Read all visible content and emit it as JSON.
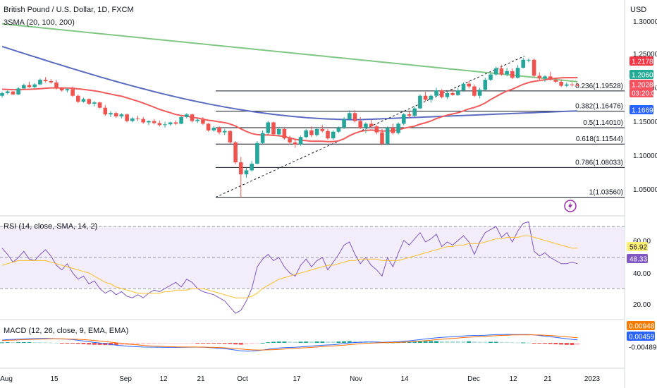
{
  "chart_data": {
    "type": "candlestick",
    "title": "British Pound / U.S. Dollar, 1D, FXCM",
    "currency": "USD",
    "indicator_label": "3SMA (20, 100, 200)",
    "x_ticks": [
      "Aug",
      "15",
      "Sep",
      "12",
      "21",
      "Oct",
      "17",
      "Nov",
      "14",
      "Dec",
      "12",
      "21",
      "2023"
    ],
    "price_ticks": [
      "1.30000",
      "1.25000",
      "1.20000",
      "1.15000",
      "1.10000",
      "1.05000"
    ],
    "price_tags": [
      {
        "label": "1.21782",
        "color": "#f23645"
      },
      {
        "label": "1.20607",
        "color": "#22ab94"
      },
      {
        "label": "1.20289",
        "color": "#f7525f"
      },
      {
        "label": "03:20:00",
        "color": "#f7525f"
      },
      {
        "label": "1.16690",
        "color": "#2962ff"
      }
    ],
    "fib_levels": [
      {
        "label": "0.236(1.19528)",
        "value": 1.19528
      },
      {
        "label": "0.382(1.16476)",
        "value": 1.16476
      },
      {
        "label": "0.5(1.14010)",
        "value": 1.1401
      },
      {
        "label": "0.618(1.11544)",
        "value": 1.11544
      },
      {
        "label": "0.786(1.08033)",
        "value": 1.08033
      },
      {
        "label": "1(1.03560)",
        "value": 1.0356
      }
    ],
    "candles": [
      [
        1.188,
        1.194,
        1.185,
        1.192
      ],
      [
        1.192,
        1.196,
        1.19,
        1.1945
      ],
      [
        1.1945,
        1.195,
        1.189,
        1.19
      ],
      [
        1.19,
        1.201,
        1.189,
        1.199
      ],
      [
        1.199,
        1.206,
        1.198,
        1.204
      ],
      [
        1.204,
        1.209,
        1.2,
        1.201
      ],
      [
        1.201,
        1.207,
        1.199,
        1.205
      ],
      [
        1.205,
        1.214,
        1.204,
        1.212
      ],
      [
        1.212,
        1.216,
        1.208,
        1.21
      ],
      [
        1.21,
        1.213,
        1.206,
        1.208
      ],
      [
        1.208,
        1.212,
        1.197,
        1.199
      ],
      [
        1.199,
        1.201,
        1.194,
        1.196
      ],
      [
        1.196,
        1.2,
        1.193,
        1.198
      ],
      [
        1.198,
        1.202,
        1.186,
        1.188
      ],
      [
        1.188,
        1.19,
        1.177,
        1.179
      ],
      [
        1.179,
        1.185,
        1.178,
        1.183
      ],
      [
        1.183,
        1.184,
        1.174,
        1.176
      ],
      [
        1.176,
        1.18,
        1.172,
        1.178
      ],
      [
        1.178,
        1.179,
        1.169,
        1.17
      ],
      [
        1.17,
        1.174,
        1.158,
        1.16
      ],
      [
        1.16,
        1.165,
        1.156,
        1.162
      ],
      [
        1.162,
        1.164,
        1.155,
        1.157
      ],
      [
        1.157,
        1.162,
        1.154,
        1.16
      ],
      [
        1.16,
        1.161,
        1.148,
        1.15
      ],
      [
        1.15,
        1.156,
        1.148,
        1.154
      ],
      [
        1.154,
        1.158,
        1.15,
        1.153
      ],
      [
        1.153,
        1.156,
        1.146,
        1.148
      ],
      [
        1.148,
        1.151,
        1.144,
        1.15
      ],
      [
        1.15,
        1.153,
        1.145,
        1.147
      ],
      [
        1.147,
        1.151,
        1.142,
        1.144
      ],
      [
        1.144,
        1.149,
        1.14,
        1.145
      ],
      [
        1.145,
        1.149,
        1.143,
        1.148
      ],
      [
        1.148,
        1.151,
        1.144,
        1.146
      ],
      [
        1.146,
        1.157,
        1.145,
        1.156
      ],
      [
        1.156,
        1.162,
        1.154,
        1.16
      ],
      [
        1.16,
        1.161,
        1.148,
        1.15
      ],
      [
        1.15,
        1.154,
        1.147,
        1.152
      ],
      [
        1.152,
        1.156,
        1.144,
        1.146
      ],
      [
        1.146,
        1.147,
        1.134,
        1.136
      ],
      [
        1.136,
        1.142,
        1.134,
        1.14
      ],
      [
        1.14,
        1.142,
        1.13,
        1.133
      ],
      [
        1.133,
        1.138,
        1.129,
        1.135
      ],
      [
        1.135,
        1.136,
        1.116,
        1.118
      ],
      [
        1.118,
        1.12,
        1.085,
        1.088
      ],
      [
        1.088,
        1.096,
        1.0356,
        1.07
      ],
      [
        1.07,
        1.08,
        1.065,
        1.076
      ],
      [
        1.076,
        1.09,
        1.074,
        1.086
      ],
      [
        1.086,
        1.12,
        1.085,
        1.117
      ],
      [
        1.117,
        1.136,
        1.115,
        1.132
      ],
      [
        1.132,
        1.15,
        1.13,
        1.148
      ],
      [
        1.148,
        1.149,
        1.128,
        1.13
      ],
      [
        1.13,
        1.14,
        1.128,
        1.138
      ],
      [
        1.138,
        1.14,
        1.122,
        1.124
      ],
      [
        1.124,
        1.128,
        1.115,
        1.118
      ],
      [
        1.118,
        1.122,
        1.11,
        1.115
      ],
      [
        1.115,
        1.128,
        1.113,
        1.126
      ],
      [
        1.126,
        1.138,
        1.124,
        1.136
      ],
      [
        1.136,
        1.142,
        1.126,
        1.129
      ],
      [
        1.129,
        1.14,
        1.127,
        1.138
      ],
      [
        1.138,
        1.144,
        1.133,
        1.135
      ],
      [
        1.135,
        1.138,
        1.122,
        1.124
      ],
      [
        1.124,
        1.136,
        1.122,
        1.134
      ],
      [
        1.134,
        1.142,
        1.132,
        1.14
      ],
      [
        1.14,
        1.156,
        1.138,
        1.153
      ],
      [
        1.153,
        1.166,
        1.151,
        1.162
      ],
      [
        1.162,
        1.166,
        1.148,
        1.15
      ],
      [
        1.15,
        1.156,
        1.138,
        1.14
      ],
      [
        1.14,
        1.148,
        1.132,
        1.146
      ],
      [
        1.146,
        1.152,
        1.14,
        1.142
      ],
      [
        1.142,
        1.144,
        1.13,
        1.133
      ],
      [
        1.133,
        1.138,
        1.114,
        1.116
      ],
      [
        1.116,
        1.142,
        1.114,
        1.14
      ],
      [
        1.14,
        1.146,
        1.13,
        1.132
      ],
      [
        1.132,
        1.148,
        1.13,
        1.146
      ],
      [
        1.146,
        1.162,
        1.144,
        1.16
      ],
      [
        1.16,
        1.165,
        1.154,
        1.158
      ],
      [
        1.158,
        1.172,
        1.156,
        1.169
      ],
      [
        1.169,
        1.19,
        1.168,
        1.188
      ],
      [
        1.188,
        1.194,
        1.18,
        1.182
      ],
      [
        1.182,
        1.19,
        1.178,
        1.188
      ],
      [
        1.188,
        1.2,
        1.186,
        1.196
      ],
      [
        1.196,
        1.198,
        1.184,
        1.186
      ],
      [
        1.186,
        1.195,
        1.183,
        1.192
      ],
      [
        1.192,
        1.198,
        1.188,
        1.189
      ],
      [
        1.189,
        1.2,
        1.188,
        1.196
      ],
      [
        1.196,
        1.208,
        1.194,
        1.206
      ],
      [
        1.206,
        1.21,
        1.199,
        1.202
      ],
      [
        1.202,
        1.205,
        1.186,
        1.188
      ],
      [
        1.188,
        1.2,
        1.184,
        1.197
      ],
      [
        1.197,
        1.215,
        1.196,
        1.212
      ],
      [
        1.212,
        1.223,
        1.21,
        1.22
      ],
      [
        1.22,
        1.232,
        1.218,
        1.229
      ],
      [
        1.229,
        1.234,
        1.218,
        1.22
      ],
      [
        1.22,
        1.23,
        1.217,
        1.225
      ],
      [
        1.225,
        1.229,
        1.213,
        1.215
      ],
      [
        1.215,
        1.234,
        1.214,
        1.23
      ],
      [
        1.23,
        1.245,
        1.229,
        1.242
      ],
      [
        1.242,
        1.244,
        1.238,
        1.242
      ],
      [
        1.242,
        1.244,
        1.216,
        1.218
      ],
      [
        1.218,
        1.223,
        1.212,
        1.214
      ],
      [
        1.214,
        1.219,
        1.209,
        1.217
      ],
      [
        1.217,
        1.224,
        1.211,
        1.212
      ],
      [
        1.212,
        1.215,
        1.207,
        1.209
      ],
      [
        1.209,
        1.212,
        1.201,
        1.203
      ],
      [
        1.203,
        1.208,
        1.201,
        1.205
      ],
      [
        1.205,
        1.208,
        1.202,
        1.204
      ],
      [
        1.204,
        1.207,
        1.202,
        1.203
      ]
    ],
    "ma_series": [
      {
        "name": "200",
        "color": "#81c784"
      },
      {
        "name": "100",
        "color": "#5b6bbf"
      },
      {
        "name": "20",
        "color": "#f05a5a"
      }
    ],
    "rsi": {
      "label": "RSI (14, close, SMA, 14, 2)",
      "ticks": [
        "60.00",
        "40.00",
        "20.00"
      ],
      "value_tags": [
        {
          "label": "56.92",
          "color": "#fff176",
          "text": "#131722"
        },
        {
          "label": "48.33",
          "color": "#7e57c2",
          "text": "#ffffff"
        }
      ],
      "band": [
        30,
        70
      ],
      "values": [
        56,
        52,
        47,
        50,
        54,
        49,
        48,
        52,
        55,
        51,
        45,
        42,
        46,
        40,
        36,
        38,
        33,
        35,
        30,
        27,
        29,
        26,
        28,
        25,
        24,
        26,
        24,
        27,
        29,
        28,
        30,
        32,
        34,
        31,
        36,
        34,
        30,
        28,
        27,
        26,
        24,
        22,
        18,
        14,
        16,
        22,
        30,
        44,
        49,
        52,
        48,
        50,
        44,
        40,
        38,
        45,
        49,
        44,
        48,
        50,
        42,
        47,
        52,
        58,
        60,
        52,
        46,
        50,
        45,
        42,
        38,
        50,
        44,
        53,
        61,
        58,
        62,
        66,
        60,
        62,
        65,
        57,
        60,
        58,
        61,
        64,
        60,
        52,
        60,
        66,
        68,
        70,
        63,
        66,
        60,
        67,
        72,
        73,
        54,
        51,
        53,
        50,
        48,
        46,
        46,
        47,
        46
      ],
      "ma_values": [
        45,
        46,
        47,
        48,
        48,
        48,
        48,
        48,
        48,
        47,
        46,
        45,
        44,
        43,
        42,
        41,
        40,
        38,
        36,
        34,
        33,
        31,
        30,
        29,
        28,
        27,
        27,
        27,
        27,
        27,
        28,
        28,
        29,
        29,
        29,
        30,
        30,
        30,
        29,
        28,
        27,
        26,
        25,
        24,
        24,
        24,
        25,
        27,
        30,
        32,
        34,
        36,
        37,
        38,
        39,
        40,
        41,
        42,
        43,
        44,
        45,
        45,
        46,
        47,
        48,
        48,
        49,
        49,
        49,
        49,
        48,
        48,
        48,
        48,
        49,
        50,
        51,
        52,
        53,
        54,
        55,
        56,
        57,
        57,
        58,
        58,
        59,
        59,
        59,
        60,
        61,
        62,
        62,
        63,
        63,
        63,
        64,
        64,
        63,
        62,
        61,
        60,
        59,
        58,
        57,
        56,
        56
      ]
    },
    "macd": {
      "label": "MACD (12, 26, close, 9, EMA, EMA)",
      "value_tags": [
        {
          "label": "0.00948",
          "color": "#f57c00",
          "text": "#ffffff"
        },
        {
          "label": "0.00459",
          "color": "#2962ff",
          "text": "#ffffff"
        },
        {
          "label": "-0.00489",
          "color": "#ffffff",
          "text": "#131722"
        }
      ],
      "macd": [
        0.006,
        0.007,
        0.0075,
        0.008,
        0.0085,
        0.009,
        0.0092,
        0.0095,
        0.0096,
        0.0094,
        0.009,
        0.0085,
        0.008,
        0.007,
        0.0055,
        0.004,
        0.0025,
        0.001,
        -0.0005,
        -0.002,
        -0.0035,
        -0.005,
        -0.0062,
        -0.0072,
        -0.008,
        -0.0085,
        -0.009,
        -0.0092,
        -0.0094,
        -0.0096,
        -0.0098,
        -0.0099,
        -0.01,
        -0.0098,
        -0.0095,
        -0.0093,
        -0.0094,
        -0.0097,
        -0.0102,
        -0.011,
        -0.0118,
        -0.0128,
        -0.014,
        -0.0158,
        -0.0175,
        -0.018,
        -0.0178,
        -0.017,
        -0.0155,
        -0.014,
        -0.0125,
        -0.0112,
        -0.0105,
        -0.01,
        -0.0096,
        -0.0088,
        -0.0078,
        -0.007,
        -0.006,
        -0.0052,
        -0.0046,
        -0.004,
        -0.003,
        -0.0015,
        0.0,
        0.0008,
        0.0012,
        0.0018,
        0.002,
        0.0018,
        0.0012,
        0.0016,
        0.0018,
        0.0024,
        0.0035,
        0.0045,
        0.0058,
        0.007,
        0.0085,
        0.0098,
        0.011,
        0.0118,
        0.0126,
        0.0134,
        0.0142,
        0.015,
        0.0158,
        0.016,
        0.016,
        0.0165,
        0.0172,
        0.0178,
        0.0182,
        0.0184,
        0.0182,
        0.018,
        0.0182,
        0.018,
        0.0172,
        0.016,
        0.0148,
        0.0135,
        0.012,
        0.0105,
        0.009,
        0.0075,
        0.0065
      ],
      "signal": [
        0.005,
        0.0055,
        0.006,
        0.0065,
        0.007,
        0.0074,
        0.0078,
        0.0082,
        0.0085,
        0.0087,
        0.0088,
        0.0087,
        0.0085,
        0.0082,
        0.0077,
        0.007,
        0.0062,
        0.0052,
        0.004,
        0.0028,
        0.0015,
        0.0002,
        -0.001,
        -0.0023,
        -0.0035,
        -0.0045,
        -0.0055,
        -0.0063,
        -0.007,
        -0.0076,
        -0.0081,
        -0.0085,
        -0.0088,
        -0.009,
        -0.0091,
        -0.0091,
        -0.0092,
        -0.0093,
        -0.0095,
        -0.0098,
        -0.0102,
        -0.0108,
        -0.0115,
        -0.0124,
        -0.0135,
        -0.0145,
        -0.0152,
        -0.0156,
        -0.0156,
        -0.0153,
        -0.0148,
        -0.0141,
        -0.0134,
        -0.0127,
        -0.012,
        -0.0113,
        -0.0106,
        -0.0098,
        -0.009,
        -0.0082,
        -0.0074,
        -0.0067,
        -0.0059,
        -0.005,
        -0.004,
        -0.003,
        -0.0021,
        -0.0013,
        -0.0006,
        0.0,
        0.0003,
        0.0006,
        0.0008,
        0.0011,
        0.0016,
        0.0022,
        0.003,
        0.0038,
        0.0048,
        0.0058,
        0.0069,
        0.0078,
        0.0088,
        0.0097,
        0.0106,
        0.0115,
        0.0123,
        0.013,
        0.0137,
        0.0143,
        0.015,
        0.0156,
        0.0161,
        0.0166,
        0.017,
        0.0172,
        0.0174,
        0.0175,
        0.0174,
        0.0171,
        0.0166,
        0.016,
        0.0152,
        0.0143,
        0.0133,
        0.0122,
        0.0112
      ]
    }
  }
}
